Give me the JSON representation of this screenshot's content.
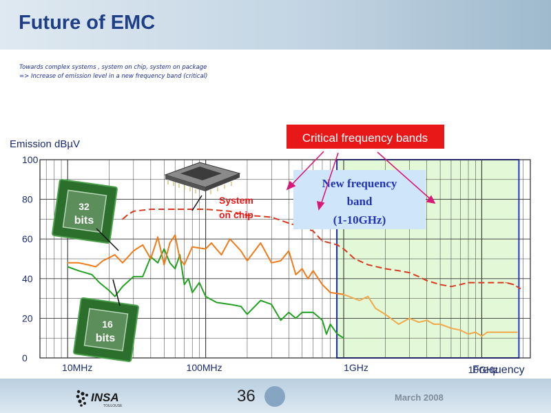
{
  "slide": {
    "title": "Future of EMC",
    "subtitle_line1": "Towards complex systems , system on chip, system on package",
    "subtitle_line2": "=> Increase of emission level in a new frequency band (critical)",
    "page_number": "36",
    "date": "March 2008",
    "logo_text": "INSA",
    "logo_subtext": "TOULOUSE"
  },
  "chart_data": {
    "type": "line",
    "ylabel": "Emission dBµV",
    "xlabel": "Frequency",
    "x_scale": "log",
    "x_unit": "MHz",
    "xlim": [
      10,
      20000
    ],
    "ylim": [
      0,
      100
    ],
    "yticks": [
      0,
      20,
      40,
      60,
      80,
      100
    ],
    "ytick_labels": [
      "0",
      "20",
      "40",
      "60",
      "80",
      "100"
    ],
    "xtick_labels": [
      {
        "value": 10,
        "label": "10MHz"
      },
      {
        "value": 100,
        "label": "100MHz"
      },
      {
        "value": 1000,
        "label": "1GHz"
      },
      {
        "value": 10000,
        "label": "10GHz"
      }
    ],
    "grid": true,
    "colors": {
      "series_16bit": "#22a022",
      "series_32bit": "#ee7a18",
      "series_32bit_projected": "#f0a848",
      "series_soc": "#d63a1e",
      "band_fill": "#e2f8d6",
      "band_border": "#2233cc",
      "callout_bg": "#e81818",
      "annotation_text": "#e81818",
      "arrow": "#d81878"
    },
    "series": [
      {
        "key": "16bit",
        "dash": "solid",
        "points": [
          [
            10,
            46
          ],
          [
            12,
            44
          ],
          [
            15,
            42
          ],
          [
            17,
            38
          ],
          [
            20,
            34
          ],
          [
            22,
            31
          ],
          [
            25,
            36
          ],
          [
            30,
            41
          ],
          [
            35,
            41
          ],
          [
            40,
            51
          ],
          [
            45,
            48
          ],
          [
            50,
            55
          ],
          [
            55,
            48
          ],
          [
            60,
            45
          ],
          [
            65,
            52
          ],
          [
            70,
            37
          ],
          [
            75,
            40
          ],
          [
            80,
            33
          ],
          [
            90,
            38
          ],
          [
            100,
            31
          ],
          [
            120,
            28
          ],
          [
            150,
            27
          ],
          [
            180,
            26
          ],
          [
            200,
            22
          ],
          [
            250,
            29
          ],
          [
            300,
            27
          ],
          [
            350,
            19
          ],
          [
            400,
            23
          ],
          [
            450,
            20
          ],
          [
            500,
            23
          ],
          [
            600,
            23
          ],
          [
            700,
            19
          ],
          [
            750,
            12
          ],
          [
            800,
            17
          ],
          [
            900,
            12
          ],
          [
            1000,
            10
          ]
        ]
      },
      {
        "key": "32bit",
        "dash": "solid",
        "points": [
          [
            10,
            48
          ],
          [
            12,
            48
          ],
          [
            14,
            47
          ],
          [
            16,
            46
          ],
          [
            18,
            49
          ],
          [
            22,
            52
          ],
          [
            25,
            48
          ],
          [
            30,
            54
          ],
          [
            35,
            57
          ],
          [
            40,
            50
          ],
          [
            45,
            61
          ],
          [
            50,
            47
          ],
          [
            55,
            58
          ],
          [
            60,
            62
          ],
          [
            65,
            50
          ],
          [
            70,
            47
          ],
          [
            80,
            56
          ],
          [
            100,
            55
          ],
          [
            110,
            58
          ],
          [
            130,
            52
          ],
          [
            150,
            60
          ],
          [
            180,
            54
          ],
          [
            200,
            49
          ],
          [
            250,
            58
          ],
          [
            300,
            48
          ],
          [
            350,
            49
          ],
          [
            400,
            54
          ],
          [
            450,
            42
          ],
          [
            500,
            45
          ],
          [
            550,
            40
          ],
          [
            600,
            44
          ],
          [
            700,
            37
          ],
          [
            800,
            33
          ],
          [
            1000,
            32
          ]
        ]
      },
      {
        "key": "32bit-projected",
        "dash": "solid",
        "points": [
          [
            1000,
            32
          ],
          [
            1300,
            29
          ],
          [
            1500,
            31
          ],
          [
            1700,
            25
          ],
          [
            2000,
            22
          ],
          [
            2500,
            17
          ],
          [
            3000,
            20
          ],
          [
            3500,
            18
          ],
          [
            4000,
            19
          ],
          [
            4500,
            17
          ],
          [
            5000,
            17
          ],
          [
            6000,
            15
          ],
          [
            7000,
            14
          ],
          [
            8000,
            12
          ],
          [
            9000,
            13
          ],
          [
            10000,
            11
          ],
          [
            11000,
            13
          ],
          [
            13000,
            13
          ],
          [
            15000,
            13
          ],
          [
            18000,
            13
          ]
        ]
      },
      {
        "key": "soc",
        "dash": "dashed",
        "points": [
          [
            25,
            70
          ],
          [
            27,
            72
          ],
          [
            30,
            74
          ],
          [
            40,
            75
          ],
          [
            60,
            75
          ],
          [
            80,
            75
          ],
          [
            100,
            75
          ],
          [
            150,
            74
          ],
          [
            200,
            72
          ],
          [
            300,
            71
          ],
          [
            400,
            68
          ],
          [
            500,
            66
          ],
          [
            600,
            64
          ],
          [
            700,
            59
          ],
          [
            800,
            58
          ],
          [
            900,
            57
          ],
          [
            1000,
            55
          ],
          [
            1200,
            50
          ],
          [
            1500,
            47
          ],
          [
            2000,
            45
          ],
          [
            2500,
            44
          ],
          [
            3000,
            43
          ],
          [
            3500,
            41
          ],
          [
            4000,
            39
          ],
          [
            5000,
            37
          ],
          [
            6000,
            36
          ],
          [
            7000,
            37
          ],
          [
            8000,
            38
          ],
          [
            10000,
            38
          ],
          [
            12000,
            38
          ],
          [
            15000,
            38
          ],
          [
            17000,
            37
          ],
          [
            19000,
            35
          ]
        ]
      }
    ],
    "band": {
      "label_line1": "New frequency",
      "label_line2": "band",
      "label_line3": "(1-10GHz)",
      "from": 1000,
      "to": 10000
    },
    "callout": "Critical frequency bands",
    "annotations": {
      "soc_line1": "System",
      "soc_line2": "on chip",
      "chip32_line1": "32",
      "chip32_line2": "bits",
      "chip16_line1": "16",
      "chip16_line2": "bits"
    }
  }
}
